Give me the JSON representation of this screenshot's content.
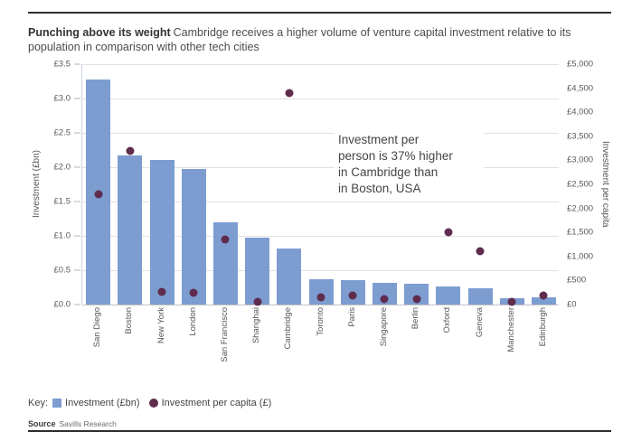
{
  "header": {
    "title": "Punching above its weight",
    "subtitle": "Cambridge receives a higher volume of venture capital investment relative to its population in comparison with other tech cities"
  },
  "chart_data": {
    "type": "bar",
    "categories": [
      "San Diego",
      "Boston",
      "New York",
      "London",
      "San Francisco",
      "Shanghai",
      "Cambridge",
      "Toronto",
      "Paris",
      "Singapore",
      "Berlin",
      "Oxford",
      "Geneva",
      "Manchester",
      "Edinburgh"
    ],
    "series": [
      {
        "name": "Investment (£bn)",
        "type": "bar",
        "axis": "left",
        "values": [
          3.27,
          2.17,
          2.1,
          1.97,
          1.2,
          0.97,
          0.81,
          0.37,
          0.36,
          0.32,
          0.3,
          0.26,
          0.24,
          0.09,
          0.1
        ]
      },
      {
        "name": "Investment per capita (£)",
        "type": "scatter",
        "axis": "right",
        "values": [
          2300,
          3200,
          270,
          240,
          1350,
          50,
          4400,
          150,
          180,
          120,
          120,
          1500,
          1100,
          50,
          190
        ]
      }
    ],
    "left_axis": {
      "label": "Investment (£bn)",
      "min": 0,
      "max": 3.5,
      "step": 0.5,
      "tick_format": "£0.0"
    },
    "right_axis": {
      "label": "Investment per capita",
      "min": 0,
      "max": 5000,
      "step": 500,
      "tick_format": "£0,000"
    },
    "grid": true,
    "annotation_lines": [
      "Investment per",
      "person is 37% higher",
      "in Cambridge than",
      "in Boston, USA"
    ]
  },
  "key": {
    "label": "Key:",
    "items": [
      {
        "swatch": "square",
        "color": "#7d9dd1",
        "label": "Investment (£bn)"
      },
      {
        "swatch": "circle",
        "color": "#5f2c4d",
        "label": "Investment per capita (£)"
      }
    ]
  },
  "source": {
    "label": "Source",
    "text": "Savills Research"
  },
  "colors": {
    "bar": "#7d9dd1",
    "dot": "#5f2c4d",
    "gridline": "#e2e2e2",
    "rule": "#2e2e2e"
  }
}
